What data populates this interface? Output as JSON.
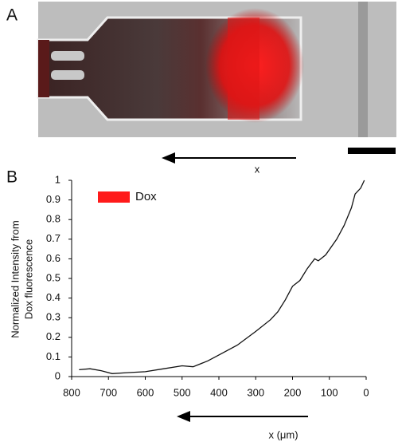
{
  "panel_labels": {
    "a": "A",
    "b": "B"
  },
  "image_arrow_label": "x",
  "chart_data": {
    "type": "line",
    "xlabel": "x (μm)",
    "ylabel": [
      "Normalized Intensity from",
      "Dox fluorescence"
    ],
    "x": [
      780,
      750,
      720,
      690,
      650,
      600,
      550,
      500,
      470,
      430,
      400,
      350,
      300,
      260,
      240,
      220,
      200,
      180,
      160,
      140,
      130,
      110,
      80,
      60,
      40,
      30,
      15,
      5
    ],
    "series": [
      {
        "name": "Dox",
        "color": "#ff1a1a",
        "values": [
          0.035,
          0.04,
          0.03,
          0.015,
          0.02,
          0.025,
          0.04,
          0.055,
          0.05,
          0.08,
          0.11,
          0.16,
          0.23,
          0.29,
          0.33,
          0.39,
          0.46,
          0.49,
          0.55,
          0.6,
          0.59,
          0.62,
          0.7,
          0.77,
          0.86,
          0.93,
          0.96,
          1.0
        ]
      }
    ],
    "line_color": "#111111",
    "xlim": [
      800,
      0
    ],
    "ylim": [
      0,
      1
    ],
    "xticks": [
      800,
      700,
      600,
      500,
      400,
      300,
      200,
      100,
      0
    ],
    "yticks": [
      0,
      0.1,
      0.2,
      0.3,
      0.4,
      0.5,
      0.6,
      0.7,
      0.8,
      0.9,
      1
    ]
  }
}
